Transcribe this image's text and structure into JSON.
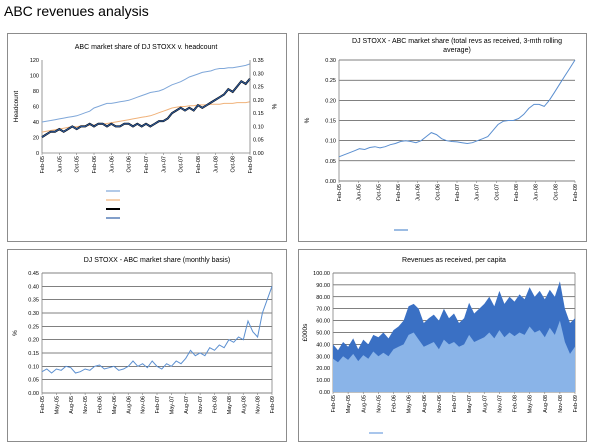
{
  "page": {
    "title": "ABC revenues analysis"
  },
  "chart_data": [
    {
      "type": "line",
      "title": "ABC market share of DJ STOXX v. headcount",
      "ylabel": "Headcount",
      "y2label": "%",
      "ylim": [
        0,
        120
      ],
      "y_ticks": [
        "0",
        "20",
        "40",
        "60",
        "80",
        "100",
        "120"
      ],
      "y2lim": [
        0,
        0.35
      ],
      "y2_ticks": [
        "0.00",
        "0.05",
        "0.10",
        "0.15",
        "0.20",
        "0.25",
        "0.30",
        "0.35"
      ],
      "x_ticks": [
        "Feb-05",
        "Jun-05",
        "Oct-05",
        "Feb-06",
        "Jun-06",
        "Oct-06",
        "Feb-07",
        "Jun-07",
        "Oct-07",
        "Feb-08",
        "Jun-08",
        "Oct-08",
        "Feb-09"
      ],
      "grid": false,
      "legend_position": "bottom",
      "series": [
        {
          "name": "",
          "axis": "left",
          "color": "#7fa7d9",
          "values": [
            40,
            41,
            42,
            43,
            44,
            45,
            46,
            47,
            48,
            50,
            52,
            54,
            58,
            60,
            62,
            64,
            64,
            65,
            66,
            67,
            68,
            70,
            72,
            74,
            76,
            78,
            79,
            80,
            82,
            85,
            88,
            90,
            92,
            95,
            98,
            100,
            102,
            104,
            105,
            106,
            108,
            109,
            109,
            110,
            110,
            111,
            112,
            113,
            115
          ]
        },
        {
          "name": "",
          "axis": "left",
          "color": "#f0b27a",
          "values": [
            27,
            28,
            29,
            30,
            31,
            32,
            33,
            34,
            34,
            35,
            35,
            36,
            36,
            37,
            37,
            38,
            39,
            40,
            41,
            42,
            43,
            44,
            45,
            46,
            47,
            48,
            50,
            52,
            54,
            56,
            58,
            59,
            60,
            60,
            61,
            61,
            62,
            62,
            62,
            63,
            63,
            63,
            64,
            64,
            64,
            65,
            65,
            65,
            66
          ]
        },
        {
          "name": "",
          "axis": "right",
          "color": "#000000",
          "width": 2,
          "values": [
            0.06,
            0.07,
            0.08,
            0.08,
            0.09,
            0.08,
            0.09,
            0.1,
            0.09,
            0.1,
            0.1,
            0.11,
            0.1,
            0.11,
            0.11,
            0.1,
            0.11,
            0.1,
            0.1,
            0.11,
            0.11,
            0.1,
            0.11,
            0.1,
            0.11,
            0.1,
            0.11,
            0.12,
            0.12,
            0.13,
            0.15,
            0.16,
            0.17,
            0.16,
            0.17,
            0.16,
            0.18,
            0.17,
            0.18,
            0.19,
            0.2,
            0.21,
            0.22,
            0.24,
            0.23,
            0.25,
            0.27,
            0.26,
            0.28
          ]
        },
        {
          "name": "",
          "axis": "right",
          "color": "#2f5fa6",
          "values": [
            0.06,
            0.07,
            0.08,
            0.08,
            0.09,
            0.08,
            0.09,
            0.1,
            0.09,
            0.1,
            0.1,
            0.11,
            0.1,
            0.11,
            0.11,
            0.1,
            0.11,
            0.1,
            0.1,
            0.11,
            0.11,
            0.1,
            0.11,
            0.1,
            0.11,
            0.1,
            0.11,
            0.12,
            0.12,
            0.13,
            0.15,
            0.16,
            0.17,
            0.16,
            0.17,
            0.16,
            0.18,
            0.17,
            0.18,
            0.19,
            0.2,
            0.21,
            0.22,
            0.24,
            0.23,
            0.25,
            0.27,
            0.26,
            0.28
          ]
        }
      ]
    },
    {
      "type": "line",
      "title": "DJ STOXX - ABC market share (total revs as received, 3-mth rolling average)",
      "ylabel": "%",
      "ylim": [
        0,
        0.3
      ],
      "y_ticks": [
        "0.00",
        "0.05",
        "0.10",
        "0.15",
        "0.20",
        "0.25",
        "0.30"
      ],
      "x_ticks": [
        "Feb-05",
        "Jun-05",
        "Oct-05",
        "Feb-06",
        "Jun-06",
        "Oct-06",
        "Feb-07",
        "Jun-07",
        "Oct-07",
        "Feb-08",
        "Jun-08",
        "Oct-08",
        "Feb-09"
      ],
      "grid": true,
      "legend_position": "bottom",
      "series": [
        {
          "name": "",
          "color": "#5b8fd0",
          "values": [
            0.06,
            0.065,
            0.07,
            0.075,
            0.08,
            0.078,
            0.083,
            0.085,
            0.082,
            0.085,
            0.09,
            0.093,
            0.098,
            0.1,
            0.098,
            0.095,
            0.1,
            0.11,
            0.12,
            0.115,
            0.105,
            0.1,
            0.098,
            0.097,
            0.095,
            0.093,
            0.095,
            0.1,
            0.105,
            0.11,
            0.125,
            0.14,
            0.148,
            0.15,
            0.15,
            0.155,
            0.165,
            0.18,
            0.19,
            0.19,
            0.185,
            0.2,
            0.22,
            0.24,
            0.26,
            0.28,
            0.3
          ]
        }
      ]
    },
    {
      "type": "line",
      "title": "DJ STOXX - ABC market share (monthly basis)",
      "ylabel": "%",
      "ylim": [
        0,
        0.45
      ],
      "y_ticks": [
        "0.00",
        "0.05",
        "0.10",
        "0.15",
        "0.20",
        "0.25",
        "0.30",
        "0.35",
        "0.40",
        "0.45"
      ],
      "x_ticks": [
        "Feb-05",
        "May-05",
        "Aug-05",
        "Nov-05",
        "Feb-06",
        "May-06",
        "Aug-06",
        "Nov-06",
        "Feb-07",
        "May-07",
        "Aug-07",
        "Nov-07",
        "Feb-08",
        "May-08",
        "Aug-08",
        "Nov-08",
        "Feb-09"
      ],
      "grid": true,
      "series": [
        {
          "name": "",
          "color": "#5b8fd0",
          "values": [
            0.08,
            0.09,
            0.075,
            0.09,
            0.085,
            0.1,
            0.095,
            0.075,
            0.08,
            0.09,
            0.085,
            0.1,
            0.105,
            0.09,
            0.095,
            0.1,
            0.085,
            0.09,
            0.1,
            0.12,
            0.1,
            0.11,
            0.095,
            0.12,
            0.1,
            0.09,
            0.11,
            0.1,
            0.12,
            0.11,
            0.13,
            0.16,
            0.14,
            0.15,
            0.14,
            0.17,
            0.16,
            0.18,
            0.17,
            0.2,
            0.19,
            0.21,
            0.2,
            0.27,
            0.23,
            0.21,
            0.3,
            0.35,
            0.4
          ]
        }
      ]
    },
    {
      "type": "area",
      "title": "Revenues  as received, per capita",
      "ylabel": "£000s",
      "ylim": [
        0,
        100
      ],
      "y_ticks": [
        "0.00",
        "10.00",
        "20.00",
        "30.00",
        "40.00",
        "50.00",
        "60.00",
        "70.00",
        "80.00",
        "90.00",
        "100.00"
      ],
      "x_ticks": [
        "Feb-05",
        "May-05",
        "Aug-05",
        "Nov-05",
        "Feb-06",
        "May-06",
        "Aug-06",
        "Nov-06",
        "Feb-07",
        "May-07",
        "Aug-07",
        "Nov-07",
        "Feb-08",
        "May-08",
        "Aug-08",
        "Nov-08",
        "Feb-09"
      ],
      "grid": true,
      "legend_position": "bottom",
      "series": [
        {
          "name": "",
          "color": "#3a70c4",
          "values": [
            40,
            35,
            42,
            38,
            45,
            36,
            44,
            40,
            48,
            46,
            50,
            45,
            52,
            55,
            60,
            72,
            74,
            70,
            58,
            62,
            65,
            60,
            70,
            62,
            66,
            58,
            62,
            75,
            66,
            70,
            74,
            80,
            72,
            85,
            74,
            80,
            76,
            82,
            78,
            88,
            80,
            85,
            78,
            86,
            80,
            93,
            70,
            58,
            62
          ]
        },
        {
          "name": "",
          "color": "#8ab4e8",
          "values": [
            28,
            25,
            30,
            27,
            32,
            26,
            31,
            28,
            34,
            30,
            33,
            30,
            36,
            38,
            40,
            48,
            50,
            44,
            38,
            40,
            42,
            36,
            44,
            40,
            42,
            38,
            40,
            48,
            42,
            44,
            46,
            50,
            45,
            52,
            46,
            50,
            47,
            50,
            48,
            55,
            50,
            52,
            46,
            54,
            48,
            60,
            42,
            32,
            38
          ]
        }
      ]
    }
  ]
}
